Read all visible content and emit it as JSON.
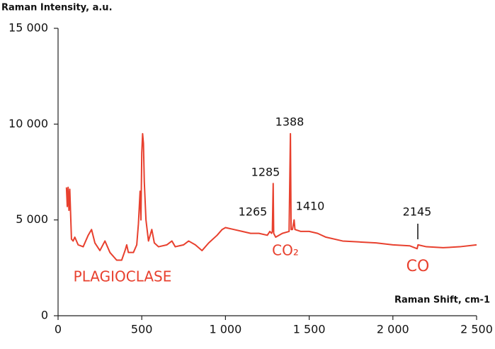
{
  "chart_data": {
    "type": "line",
    "y_label": "Raman Intensity, a.u.",
    "x_label": "Raman Shift, cm-1",
    "color": "#e8402e",
    "x": [
      50,
      55,
      60,
      65,
      70,
      80,
      90,
      100,
      120,
      150,
      180,
      200,
      220,
      250,
      280,
      310,
      350,
      380,
      400,
      410,
      420,
      450,
      470,
      480,
      490,
      495,
      500,
      505,
      510,
      515,
      525,
      540,
      560,
      575,
      600,
      650,
      680,
      700,
      750,
      780,
      820,
      860,
      900,
      950,
      980,
      1000,
      1050,
      1100,
      1150,
      1200,
      1250,
      1265,
      1275,
      1280,
      1285,
      1288,
      1300,
      1340,
      1380,
      1388,
      1392,
      1400,
      1410,
      1415,
      1450,
      1500,
      1550,
      1600,
      1700,
      1800,
      1900,
      2000,
      2100,
      2145,
      2150,
      2200,
      2300,
      2400,
      2500
    ],
    "values": [
      6700,
      5700,
      6700,
      5500,
      6600,
      4000,
      3900,
      4100,
      3700,
      3600,
      4200,
      4500,
      3800,
      3400,
      3900,
      3300,
      2900,
      2900,
      3400,
      3700,
      3300,
      3300,
      3700,
      4800,
      6500,
      5000,
      8500,
      9500,
      9000,
      7000,
      5000,
      3900,
      4500,
      3800,
      3600,
      3700,
      3900,
      3600,
      3700,
      3900,
      3700,
      3400,
      3800,
      4200,
      4500,
      4600,
      4500,
      4400,
      4300,
      4300,
      4200,
      4400,
      4300,
      4400,
      6900,
      4300,
      4100,
      4300,
      4400,
      9500,
      4500,
      4500,
      5000,
      4500,
      4400,
      4400,
      4300,
      4100,
      3900,
      3850,
      3800,
      3700,
      3650,
      3500,
      3700,
      3600,
      3550,
      3600,
      3700
    ],
    "xlim": [
      0,
      2500
    ],
    "ylim": [
      0,
      15000
    ],
    "xticks": [
      0,
      500,
      {
        "value": 1000,
        "label": "1 000"
      },
      {
        "value": 1500,
        "label": "1 500"
      },
      {
        "value": 2000,
        "label": "2 000"
      },
      {
        "value": 2500,
        "label": "2 500"
      }
    ],
    "yticks": [
      0,
      {
        "value": 5000,
        "label": "5 000"
      },
      {
        "value": 10000,
        "label": "10 000"
      },
      {
        "value": 15000,
        "label": "15 000"
      }
    ],
    "annotations": [
      "1388",
      "1285",
      "1265",
      "1410",
      "2145",
      "CO₂",
      "CO",
      "PLAGIOCLASE"
    ]
  }
}
